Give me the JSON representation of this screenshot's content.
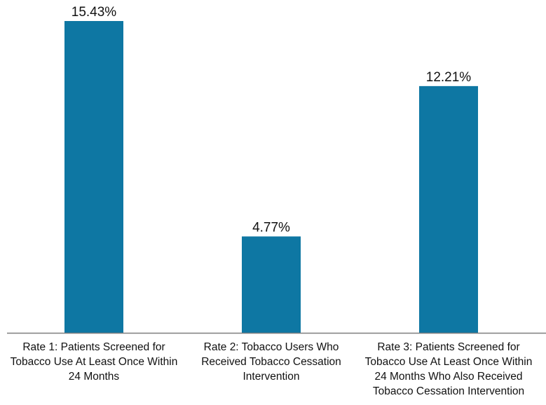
{
  "chart_data": {
    "type": "bar",
    "title": "",
    "xlabel": "",
    "ylabel": "",
    "ylim": [
      0,
      16
    ],
    "grid": false,
    "legend": "none",
    "bar_color": "#0e77a3",
    "axis_color": "#7f7f7f",
    "categories": [
      [
        "Rate 1: Patients Screened for",
        "Tobacco Use At Least Once Within",
        "24 Months"
      ],
      [
        "Rate 2: Tobacco Users Who",
        "Received Tobacco Cessation",
        "Intervention"
      ],
      [
        "Rate 3: Patients Screened for",
        "Tobacco Use At Least Once Within",
        "24 Months Who Also Received",
        "Tobacco Cessation Intervention"
      ]
    ],
    "values": [
      15.43,
      4.77,
      12.21
    ],
    "data_labels": [
      "15.43%",
      "4.77%",
      "12.21%"
    ]
  }
}
